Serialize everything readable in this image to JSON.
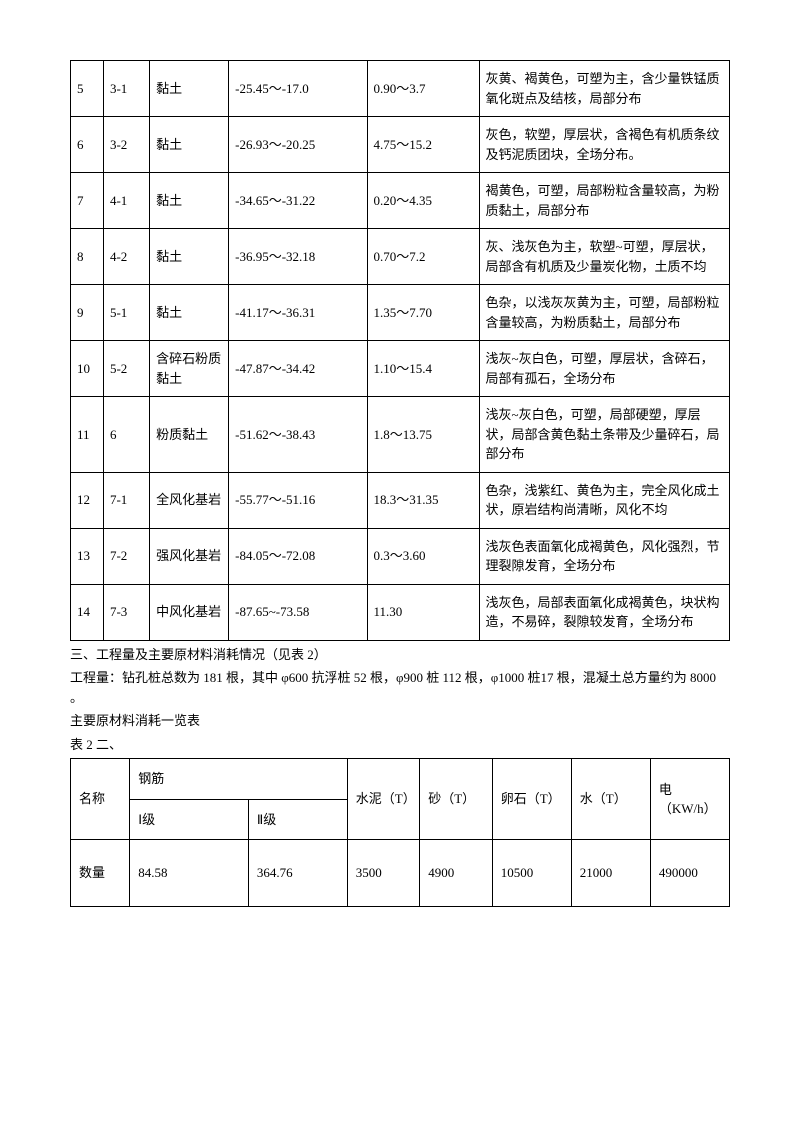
{
  "table1": {
    "rows": [
      {
        "no": "5",
        "code": "3-1",
        "name": "黏土",
        "range": "-25.45～-17.0",
        "thick": "0.90～3.7",
        "desc": "灰黄、褐黄色，可塑为主，含少量铁锰质氧化斑点及结核，局部分布"
      },
      {
        "no": "6",
        "code": "3-2",
        "name": "黏土",
        "range": "-26.93～-20.25",
        "thick": "4.75～15.2",
        "desc": "灰色，软塑，厚层状，含褐色有机质条纹及钙泥质团块，全场分布。"
      },
      {
        "no": "7",
        "code": "4-1",
        "name": "黏土",
        "range": "-34.65～-31.22",
        "thick": "0.20～4.35",
        "desc": "褐黄色，可塑，局部粉粒含量较高，为粉质黏土，局部分布"
      },
      {
        "no": "8",
        "code": "4-2",
        "name": "黏土",
        "range": "-36.95～-32.18",
        "thick": "0.70～7.2",
        "desc": "灰、浅灰色为主，软塑~可塑，厚层状，局部含有机质及少量炭化物，土质不均"
      },
      {
        "no": "9",
        "code": "5-1",
        "name": "黏土",
        "range": "-41.17～-36.31",
        "thick": "1.35～7.70",
        "desc": "色杂，以浅灰灰黄为主，可塑，局部粉粒含量较高，为粉质黏土，局部分布"
      },
      {
        "no": "10",
        "code": "5-2",
        "name": "含碎石粉质黏土",
        "range": "-47.87～-34.42",
        "thick": "1.10～15.4",
        "desc": "浅灰~灰白色，可塑，厚层状，含碎石，局部有孤石，全场分布"
      },
      {
        "no": "11",
        "code": "6",
        "name": "粉质黏土",
        "range": "-51.62～-38.43",
        "thick": "1.8～13.75",
        "desc": "浅灰~灰白色，可塑，局部硬塑，厚层状，局部含黄色黏土条带及少量碎石，局部分布"
      },
      {
        "no": "12",
        "code": "7-1",
        "name": "全风化基岩",
        "range": "-55.77～-51.16",
        "thick": "18.3～31.35",
        "desc": "色杂，浅紫红、黄色为主，完全风化成土状，原岩结构尚清晰，风化不均"
      },
      {
        "no": "13",
        "code": "7-2",
        "name": "强风化基岩",
        "range": "-84.05～-72.08",
        "thick": "0.3～3.60",
        "desc": "浅灰色表面氧化成褐黄色，风化强烈，节理裂隙发育，全场分布"
      },
      {
        "no": "14",
        "code": "7-3",
        "name": "中风化基岩",
        "range": "-87.65~-73.58",
        "thick": "11.30",
        "desc": "浅灰色，局部表面氧化成褐黄色，块状构造，不易碎，裂隙较发育，全场分布"
      }
    ]
  },
  "paragraphs": {
    "p1": "三、工程量及主要原材料消耗情况（见表 2）",
    "p2": "工程量：钻孔桩总数为 181 根，其中 φ600 抗浮桩 52 根，φ900 桩 112 根，φ1000 桩17 根，混凝土总方量约为 8000 。",
    "p3": "主要原材料消耗一览表",
    "p4": "表 2 二、"
  },
  "table2": {
    "head": {
      "name": "名称",
      "rebar": "钢筋",
      "cement": "水泥（T）",
      "sand": "砂（T）",
      "gravel": "卵石（T）",
      "water": "水（T）",
      "elec": "电（KW/h）",
      "g1": "Ⅰ级",
      "g2": "Ⅱ级"
    },
    "row": {
      "name": "数量",
      "g1": "84.58",
      "g2": "364.76",
      "cement": "3500",
      "sand": "4900",
      "gravel": "10500",
      "water": "21000",
      "elec": "490000"
    }
  }
}
